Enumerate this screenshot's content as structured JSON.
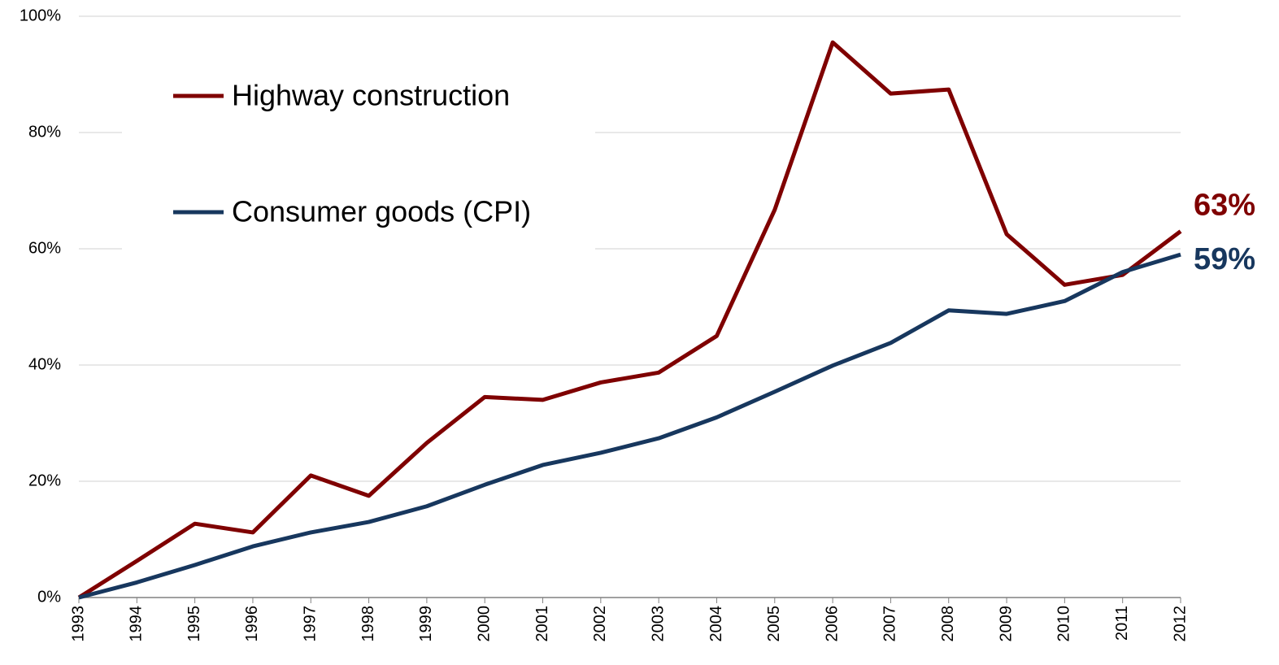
{
  "chart_data": {
    "type": "line",
    "categories": [
      "1993",
      "1994",
      "1995",
      "1996",
      "1997",
      "1998",
      "1999",
      "2000",
      "2001",
      "2002",
      "2003",
      "2004",
      "2005",
      "2006",
      "2007",
      "2008",
      "2009",
      "2010",
      "2011",
      "2012"
    ],
    "series": [
      {
        "name": "Highway construction",
        "color": "#7f0000",
        "values": [
          0,
          6.3,
          12.7,
          11.2,
          21,
          17.5,
          26.6,
          34.5,
          34,
          37,
          38.7,
          45,
          66.7,
          95.5,
          86.7,
          87.4,
          62.5,
          53.8,
          55.5,
          63
        ],
        "value_labels": [
          null,
          null,
          null,
          null,
          null,
          null,
          null,
          null,
          null,
          null,
          null,
          null,
          null,
          null,
          null,
          null,
          null,
          null,
          null,
          "63%"
        ]
      },
      {
        "name": "Consumer goods (CPI)",
        "color": "#17375e",
        "values": [
          0,
          2.6,
          5.6,
          8.8,
          11.2,
          13,
          15.7,
          19.4,
          22.8,
          24.9,
          27.4,
          31,
          35.4,
          39.9,
          43.8,
          49.4,
          48.8,
          51,
          56,
          59
        ],
        "value_labels": [
          null,
          null,
          null,
          null,
          null,
          null,
          null,
          null,
          null,
          null,
          null,
          null,
          null,
          null,
          null,
          null,
          null,
          null,
          null,
          "59%"
        ]
      }
    ],
    "ylim": [
      0,
      100
    ],
    "yticks": [
      {
        "value": 0,
        "label": "0%"
      },
      {
        "value": 20,
        "label": "20%"
      },
      {
        "value": 40,
        "label": "40%"
      },
      {
        "value": 60,
        "label": "60%"
      },
      {
        "value": 80,
        "label": "80%"
      },
      {
        "value": 100,
        "label": "100%"
      }
    ],
    "grid": true,
    "legend": "upper left"
  }
}
